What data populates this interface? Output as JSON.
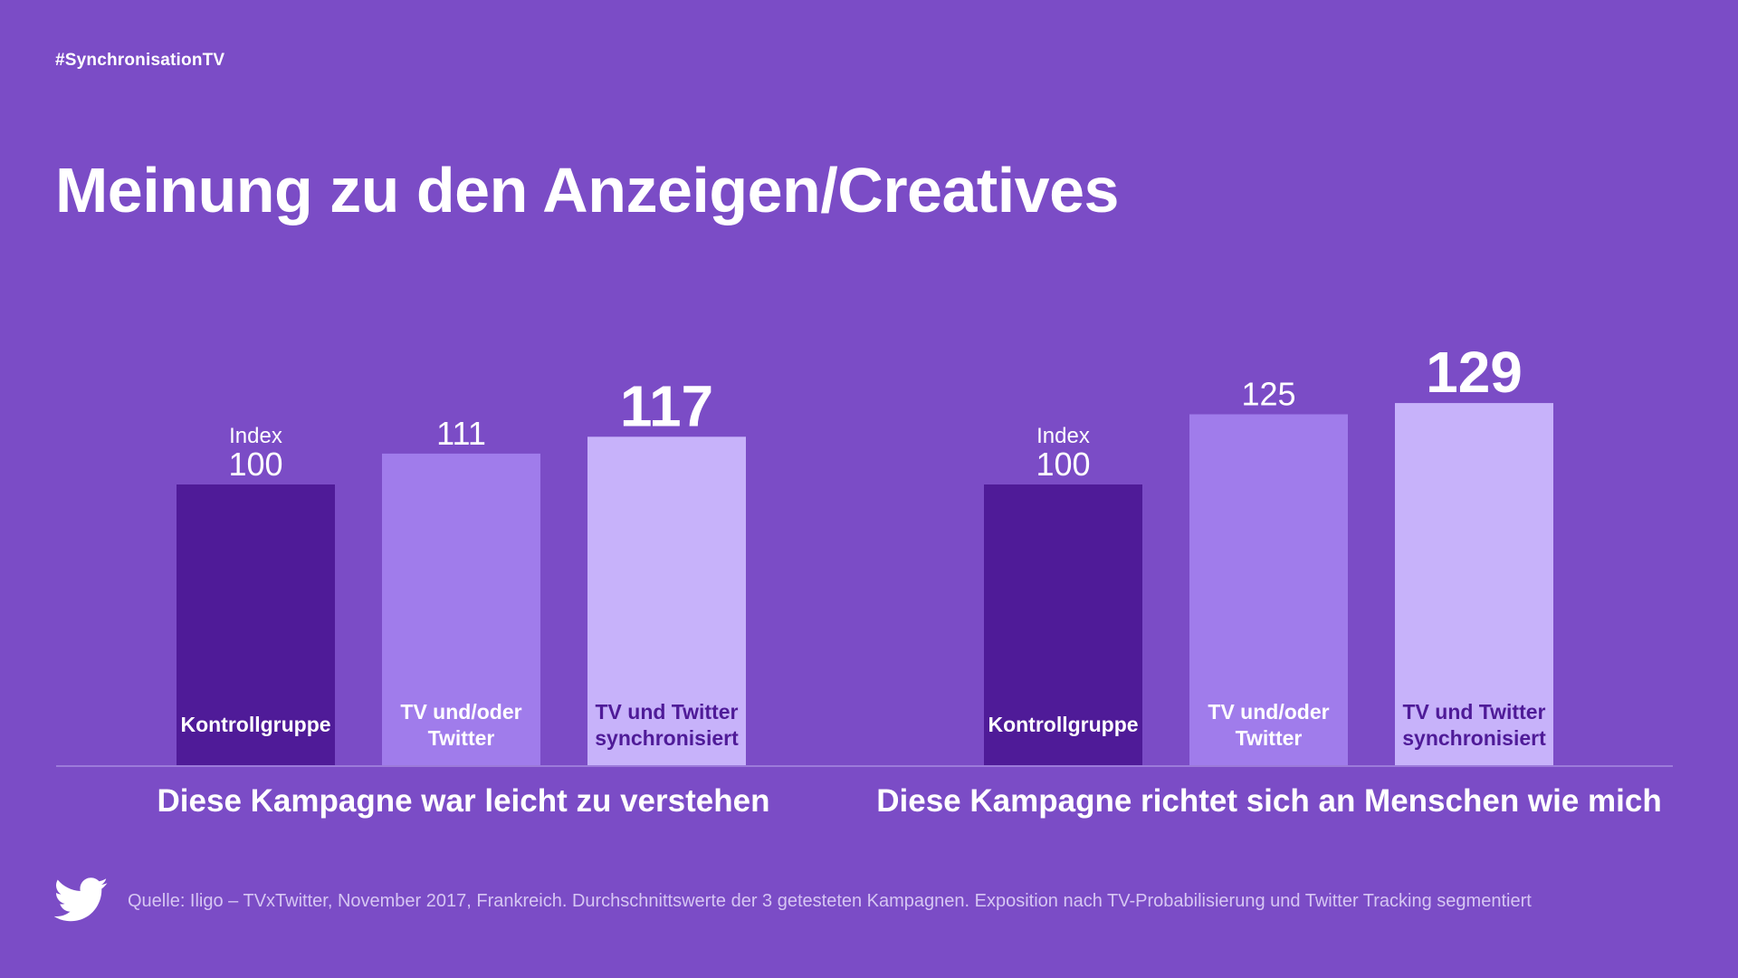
{
  "header": {
    "hashtag": "#SynchronisationTV",
    "title": "Meinung zu den Anzeigen/Creatives"
  },
  "chart_data": {
    "type": "bar",
    "index_label": "Index",
    "groups": [
      {
        "name": "Diese Kampagne war leicht zu verstehen",
        "bars": [
          {
            "label": [
              "Kontrollgruppe"
            ],
            "value": 100,
            "color": "#4f1b98",
            "label_color": "#ffffff",
            "show_index": true,
            "emphasis": false
          },
          {
            "label": [
              "TV und/oder",
              "Twitter"
            ],
            "value": 111,
            "color": "#a07ceb",
            "label_color": "#ffffff",
            "show_index": false,
            "emphasis": false
          },
          {
            "label": [
              "TV und Twitter",
              "synchronisiert"
            ],
            "value": 117,
            "color": "#c7b2fa",
            "label_color": "#4f1b98",
            "show_index": false,
            "emphasis": true
          }
        ]
      },
      {
        "name": "Diese Kampagne richtet sich an Menschen wie mich",
        "bars": [
          {
            "label": [
              "Kontrollgruppe"
            ],
            "value": 100,
            "color": "#4f1b98",
            "label_color": "#ffffff",
            "show_index": true,
            "emphasis": false
          },
          {
            "label": [
              "TV und/oder",
              "Twitter"
            ],
            "value": 125,
            "color": "#a07ceb",
            "label_color": "#ffffff",
            "show_index": false,
            "emphasis": false
          },
          {
            "label": [
              "TV und Twitter",
              "synchronisiert"
            ],
            "value": 129,
            "color": "#c7b2fa",
            "label_color": "#4f1b98",
            "show_index": true,
            "emphasis": true
          }
        ]
      }
    ]
  },
  "footer": {
    "icon": "twitter-bird-icon",
    "source": "Quelle: Iligo – TVxTwitter, November 2017, Frankreich. Durchschnittswerte der 3 getesteten Kampagnen. Exposition nach TV-Probabilisierung und Twitter Tracking segmentiert"
  }
}
